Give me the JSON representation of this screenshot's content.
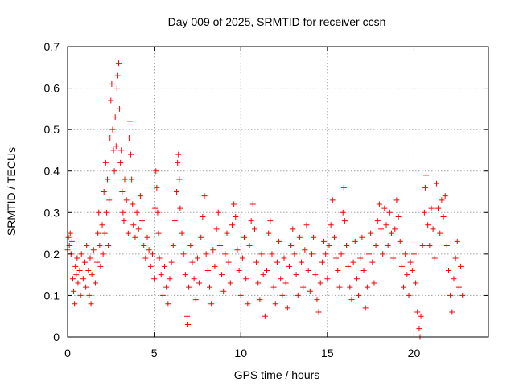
{
  "chart_data": {
    "type": "scatter",
    "title": "Day 009 of 2025, SRMTID for receiver ccsn",
    "xlabel": "GPS time / hours",
    "ylabel": "SRMTID / TECUs",
    "xlim": [
      0,
      24.3
    ],
    "ylim": [
      0,
      0.7
    ],
    "xticks": [
      0,
      5,
      10,
      15,
      20
    ],
    "xtick_labels": [
      "0",
      "5",
      "10",
      "15",
      "20"
    ],
    "yticks": [
      0,
      0.1,
      0.2,
      0.3,
      0.4,
      0.5,
      0.6,
      0.7
    ],
    "ytick_labels": [
      "0",
      "0.1",
      "0.2",
      "0.3",
      "0.4",
      "0.5",
      "0.6",
      "0.7"
    ],
    "grid": true,
    "marker": "+",
    "color": "#ff0000",
    "series": [
      {
        "name": "SRMTID",
        "points": [
          [
            0.0,
            0.21
          ],
          [
            0.05,
            0.24
          ],
          [
            0.1,
            0.22
          ],
          [
            0.15,
            0.25
          ],
          [
            0.2,
            0.2
          ],
          [
            0.25,
            0.23
          ],
          [
            0.3,
            0.14
          ],
          [
            0.35,
            0.11
          ],
          [
            0.4,
            0.08
          ],
          [
            0.45,
            0.17
          ],
          [
            0.5,
            0.15
          ],
          [
            0.55,
            0.19
          ],
          [
            0.6,
            0.13
          ],
          [
            0.7,
            0.16
          ],
          [
            0.75,
            0.1
          ],
          [
            0.8,
            0.2
          ],
          [
            0.9,
            0.14
          ],
          [
            1.0,
            0.18
          ],
          [
            1.05,
            0.12
          ],
          [
            1.1,
            0.22
          ],
          [
            1.2,
            0.16
          ],
          [
            1.25,
            0.1
          ],
          [
            1.3,
            0.19
          ],
          [
            1.35,
            0.08
          ],
          [
            1.4,
            0.15
          ],
          [
            1.5,
            0.21
          ],
          [
            1.6,
            0.13
          ],
          [
            1.7,
            0.18
          ],
          [
            1.75,
            0.25
          ],
          [
            1.8,
            0.3
          ],
          [
            1.85,
            0.22
          ],
          [
            1.9,
            0.17
          ],
          [
            2.0,
            0.27
          ],
          [
            2.05,
            0.2
          ],
          [
            2.1,
            0.35
          ],
          [
            2.15,
            0.25
          ],
          [
            2.2,
            0.42
          ],
          [
            2.25,
            0.3
          ],
          [
            2.3,
            0.38
          ],
          [
            2.35,
            0.22
          ],
          [
            2.4,
            0.33
          ],
          [
            2.45,
            0.48
          ],
          [
            2.5,
            0.57
          ],
          [
            2.55,
            0.61
          ],
          [
            2.6,
            0.5
          ],
          [
            2.65,
            0.45
          ],
          [
            2.7,
            0.4
          ],
          [
            2.75,
            0.53
          ],
          [
            2.8,
            0.46
          ],
          [
            2.85,
            0.6
          ],
          [
            2.9,
            0.63
          ],
          [
            2.95,
            0.66
          ],
          [
            3.0,
            0.55
          ],
          [
            3.05,
            0.42
          ],
          [
            3.1,
            0.45
          ],
          [
            3.15,
            0.35
          ],
          [
            3.2,
            0.3
          ],
          [
            3.25,
            0.28
          ],
          [
            3.3,
            0.38
          ],
          [
            3.4,
            0.33
          ],
          [
            3.5,
            0.25
          ],
          [
            3.55,
            0.48
          ],
          [
            3.6,
            0.52
          ],
          [
            3.65,
            0.44
          ],
          [
            3.7,
            0.38
          ],
          [
            3.75,
            0.32
          ],
          [
            3.8,
            0.27
          ],
          [
            3.9,
            0.24
          ],
          [
            4.0,
            0.3
          ],
          [
            4.1,
            0.26
          ],
          [
            4.2,
            0.34
          ],
          [
            4.3,
            0.28
          ],
          [
            4.4,
            0.22
          ],
          [
            4.5,
            0.19
          ],
          [
            4.6,
            0.24
          ],
          [
            4.7,
            0.21
          ],
          [
            4.8,
            0.17
          ],
          [
            4.9,
            0.2
          ],
          [
            5.0,
            0.14
          ],
          [
            5.05,
            0.31
          ],
          [
            5.1,
            0.4
          ],
          [
            5.15,
            0.36
          ],
          [
            5.2,
            0.3
          ],
          [
            5.25,
            0.25
          ],
          [
            5.3,
            0.19
          ],
          [
            5.4,
            0.15
          ],
          [
            5.5,
            0.1
          ],
          [
            5.6,
            0.17
          ],
          [
            5.7,
            0.12
          ],
          [
            5.8,
            0.08
          ],
          [
            5.9,
            0.14
          ],
          [
            6.0,
            0.18
          ],
          [
            6.1,
            0.22
          ],
          [
            6.2,
            0.28
          ],
          [
            6.3,
            0.35
          ],
          [
            6.35,
            0.42
          ],
          [
            6.4,
            0.44
          ],
          [
            6.45,
            0.38
          ],
          [
            6.5,
            0.31
          ],
          [
            6.6,
            0.25
          ],
          [
            6.7,
            0.2
          ],
          [
            6.8,
            0.15
          ],
          [
            6.9,
            0.05
          ],
          [
            6.95,
            0.03
          ],
          [
            7.0,
            0.12
          ],
          [
            7.1,
            0.22
          ],
          [
            7.2,
            0.18
          ],
          [
            7.3,
            0.14
          ],
          [
            7.4,
            0.09
          ],
          [
            7.5,
            0.19
          ],
          [
            7.6,
            0.13
          ],
          [
            7.7,
            0.24
          ],
          [
            7.8,
            0.29
          ],
          [
            7.9,
            0.34
          ],
          [
            8.0,
            0.2
          ],
          [
            8.1,
            0.16
          ],
          [
            8.2,
            0.12
          ],
          [
            8.3,
            0.08
          ],
          [
            8.4,
            0.21
          ],
          [
            8.5,
            0.17
          ],
          [
            8.6,
            0.26
          ],
          [
            8.7,
            0.3
          ],
          [
            8.8,
            0.22
          ],
          [
            8.9,
            0.15
          ],
          [
            9.0,
            0.11
          ],
          [
            9.1,
            0.2
          ],
          [
            9.2,
            0.25
          ],
          [
            9.3,
            0.18
          ],
          [
            9.4,
            0.13
          ],
          [
            9.5,
            0.27
          ],
          [
            9.6,
            0.32
          ],
          [
            9.7,
            0.29
          ],
          [
            9.8,
            0.21
          ],
          [
            9.9,
            0.16
          ],
          [
            10.0,
            0.1
          ],
          [
            10.1,
            0.19
          ],
          [
            10.2,
            0.24
          ],
          [
            10.3,
            0.14
          ],
          [
            10.4,
            0.08
          ],
          [
            10.5,
            0.22
          ],
          [
            10.6,
            0.28
          ],
          [
            10.7,
            0.32
          ],
          [
            10.8,
            0.26
          ],
          [
            10.9,
            0.18
          ],
          [
            11.0,
            0.13
          ],
          [
            11.1,
            0.09
          ],
          [
            11.2,
            0.2
          ],
          [
            11.3,
            0.15
          ],
          [
            11.4,
            0.05
          ],
          [
            11.5,
            0.16
          ],
          [
            11.6,
            0.25
          ],
          [
            11.7,
            0.28
          ],
          [
            11.8,
            0.2
          ],
          [
            11.9,
            0.12
          ],
          [
            12.0,
            0.08
          ],
          [
            12.1,
            0.18
          ],
          [
            12.2,
            0.23
          ],
          [
            12.3,
            0.14
          ],
          [
            12.4,
            0.1
          ],
          [
            12.5,
            0.19
          ],
          [
            12.6,
            0.13
          ],
          [
            12.7,
            0.07
          ],
          [
            12.8,
            0.17
          ],
          [
            12.9,
            0.22
          ],
          [
            13.0,
            0.26
          ],
          [
            13.1,
            0.2
          ],
          [
            13.2,
            0.15
          ],
          [
            13.3,
            0.1
          ],
          [
            13.4,
            0.24
          ],
          [
            13.5,
            0.18
          ],
          [
            13.6,
            0.12
          ],
          [
            13.7,
            0.21
          ],
          [
            13.8,
            0.27
          ],
          [
            13.9,
            0.16
          ],
          [
            14.0,
            0.11
          ],
          [
            14.1,
            0.2
          ],
          [
            14.2,
            0.24
          ],
          [
            14.3,
            0.15
          ],
          [
            14.4,
            0.09
          ],
          [
            14.5,
            0.06
          ],
          [
            14.6,
            0.13
          ],
          [
            14.7,
            0.18
          ],
          [
            14.8,
            0.23
          ],
          [
            14.9,
            0.2
          ],
          [
            15.0,
            0.14
          ],
          [
            15.1,
            0.22
          ],
          [
            15.2,
            0.27
          ],
          [
            15.3,
            0.33
          ],
          [
            15.4,
            0.24
          ],
          [
            15.5,
            0.19
          ],
          [
            15.6,
            0.16
          ],
          [
            15.7,
            0.12
          ],
          [
            15.8,
            0.2
          ],
          [
            15.9,
            0.3
          ],
          [
            15.95,
            0.36
          ],
          [
            16.0,
            0.28
          ],
          [
            16.1,
            0.22
          ],
          [
            16.2,
            0.17
          ],
          [
            16.3,
            0.12
          ],
          [
            16.4,
            0.09
          ],
          [
            16.5,
            0.18
          ],
          [
            16.6,
            0.23
          ],
          [
            16.7,
            0.14
          ],
          [
            16.8,
            0.1
          ],
          [
            16.9,
            0.19
          ],
          [
            17.0,
            0.24
          ],
          [
            17.1,
            0.16
          ],
          [
            17.2,
            0.07
          ],
          [
            17.3,
            0.12
          ],
          [
            17.4,
            0.2
          ],
          [
            17.5,
            0.25
          ],
          [
            17.6,
            0.18
          ],
          [
            17.7,
            0.13
          ],
          [
            17.8,
            0.22
          ],
          [
            17.9,
            0.28
          ],
          [
            18.0,
            0.32
          ],
          [
            18.1,
            0.26
          ],
          [
            18.2,
            0.2
          ],
          [
            18.3,
            0.31
          ],
          [
            18.4,
            0.27
          ],
          [
            18.5,
            0.22
          ],
          [
            18.6,
            0.3
          ],
          [
            18.7,
            0.25
          ],
          [
            18.8,
            0.19
          ],
          [
            18.9,
            0.26
          ],
          [
            19.0,
            0.33
          ],
          [
            19.1,
            0.29
          ],
          [
            19.2,
            0.23
          ],
          [
            19.3,
            0.17
          ],
          [
            19.4,
            0.12
          ],
          [
            19.5,
            0.2
          ],
          [
            19.6,
            0.15
          ],
          [
            19.7,
            0.1
          ],
          [
            19.8,
            0.18
          ],
          [
            19.9,
            0.16
          ],
          [
            20.0,
            0.2
          ],
          [
            20.1,
            0.13
          ],
          [
            20.2,
            0.06
          ],
          [
            20.3,
            0.02
          ],
          [
            20.35,
            0.0
          ],
          [
            20.4,
            0.05
          ],
          [
            20.5,
            0.22
          ],
          [
            20.6,
            0.3
          ],
          [
            20.65,
            0.36
          ],
          [
            20.7,
            0.39
          ],
          [
            20.8,
            0.27
          ],
          [
            20.9,
            0.22
          ],
          [
            21.0,
            0.31
          ],
          [
            21.1,
            0.26
          ],
          [
            21.2,
            0.19
          ],
          [
            21.3,
            0.37
          ],
          [
            21.4,
            0.31
          ],
          [
            21.5,
            0.25
          ],
          [
            21.6,
            0.33
          ],
          [
            21.7,
            0.29
          ],
          [
            21.8,
            0.34
          ],
          [
            21.9,
            0.22
          ],
          [
            22.0,
            0.16
          ],
          [
            22.1,
            0.1
          ],
          [
            22.2,
            0.06
          ],
          [
            22.3,
            0.14
          ],
          [
            22.4,
            0.19
          ],
          [
            22.5,
            0.23
          ],
          [
            22.6,
            0.12
          ],
          [
            22.7,
            0.17
          ],
          [
            22.8,
            0.1
          ]
        ]
      }
    ]
  }
}
